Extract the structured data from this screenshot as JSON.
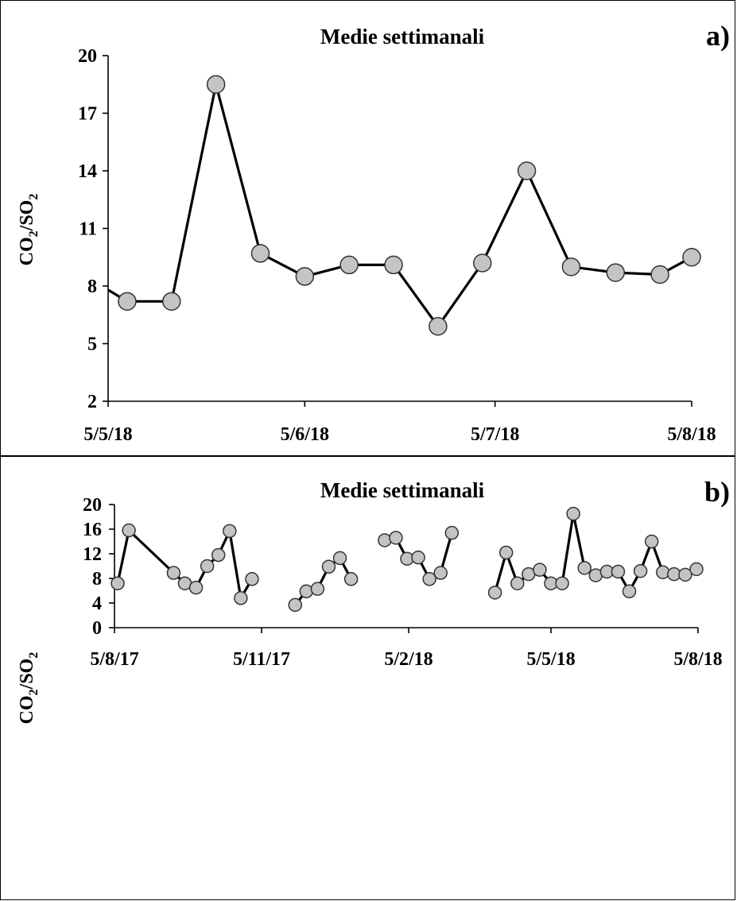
{
  "chart_data": [
    {
      "type": "line",
      "title": "Medie settimanali",
      "panel_label": "a)",
      "ylabel": "CO2/SO2",
      "ylabel_parts": [
        "CO",
        "2",
        "/SO",
        "2"
      ],
      "ylim": [
        2,
        20
      ],
      "yticks": [
        "2",
        "5",
        "8",
        "11",
        "14",
        "17",
        "20"
      ],
      "xlim": [
        "2018-05-05",
        "2018-08-05"
      ],
      "xticks": [
        {
          "label": "5/5/18",
          "date": "2018-05-05"
        },
        {
          "label": "5/6/18",
          "date": "2018-06-05"
        },
        {
          "label": "5/7/18",
          "date": "2018-07-05"
        },
        {
          "label": "5/8/18",
          "date": "2018-08-05"
        }
      ],
      "series": [
        {
          "segments": [
            [
              {
                "x": "2018-05-03",
                "y": 8.2
              },
              {
                "x": "2018-05-08",
                "y": 7.2
              },
              {
                "x": "2018-05-15",
                "y": 7.2
              },
              {
                "x": "2018-05-22",
                "y": 18.5
              },
              {
                "x": "2018-05-29",
                "y": 9.7
              },
              {
                "x": "2018-06-05",
                "y": 8.5
              },
              {
                "x": "2018-06-12",
                "y": 9.1
              },
              {
                "x": "2018-06-19",
                "y": 9.1
              },
              {
                "x": "2018-06-26",
                "y": 5.9
              },
              {
                "x": "2018-07-03",
                "y": 9.2
              },
              {
                "x": "2018-07-10",
                "y": 14.0
              },
              {
                "x": "2018-07-17",
                "y": 9.0
              },
              {
                "x": "2018-07-24",
                "y": 8.7
              },
              {
                "x": "2018-07-31",
                "y": 8.6
              },
              {
                "x": "2018-08-05",
                "y": 9.5
              }
            ]
          ]
        }
      ]
    },
    {
      "type": "line",
      "title": "Medie settimanali",
      "panel_label": "b)",
      "ylabel": "CO2/SO2",
      "ylabel_parts": [
        "CO",
        "2",
        "/SO",
        "2"
      ],
      "ylim": [
        0,
        20
      ],
      "yticks": [
        "0",
        "4",
        "8",
        "12",
        "16",
        "20"
      ],
      "xlim": [
        "2017-08-05",
        "2018-08-05"
      ],
      "xticks": [
        {
          "label": "5/8/17",
          "date": "2017-08-05"
        },
        {
          "label": "5/11/17",
          "date": "2017-11-05"
        },
        {
          "label": "5/2/18",
          "date": "2018-02-05"
        },
        {
          "label": "5/5/18",
          "date": "2018-05-05"
        },
        {
          "label": "5/8/18",
          "date": "2018-08-05"
        }
      ],
      "series": [
        {
          "segments": [
            [
              {
                "x": "2017-08-04",
                "y": 6.6
              },
              {
                "x": "2017-08-07",
                "y": 7.2
              },
              {
                "x": "2017-08-14",
                "y": 15.8
              },
              {
                "x": "2017-09-11",
                "y": 8.9
              },
              {
                "x": "2017-09-18",
                "y": 7.2
              },
              {
                "x": "2017-09-25",
                "y": 6.5
              },
              {
                "x": "2017-10-02",
                "y": 10.0
              },
              {
                "x": "2017-10-09",
                "y": 11.8
              },
              {
                "x": "2017-10-16",
                "y": 15.7
              },
              {
                "x": "2017-10-23",
                "y": 4.8
              },
              {
                "x": "2017-10-30",
                "y": 7.9
              }
            ],
            [
              {
                "x": "2017-11-26",
                "y": 3.7
              },
              {
                "x": "2017-12-03",
                "y": 5.9
              },
              {
                "x": "2017-12-10",
                "y": 6.3
              },
              {
                "x": "2017-12-17",
                "y": 9.9
              },
              {
                "x": "2017-12-24",
                "y": 11.3
              },
              {
                "x": "2017-12-31",
                "y": 7.9
              }
            ],
            [
              {
                "x": "2018-01-21",
                "y": 14.2
              },
              {
                "x": "2018-01-28",
                "y": 14.6
              },
              {
                "x": "2018-02-04",
                "y": 11.2
              },
              {
                "x": "2018-02-11",
                "y": 11.4
              },
              {
                "x": "2018-02-18",
                "y": 7.9
              },
              {
                "x": "2018-02-25",
                "y": 8.9
              },
              {
                "x": "2018-03-04",
                "y": 15.4
              }
            ],
            [
              {
                "x": "2018-03-31",
                "y": 5.7
              },
              {
                "x": "2018-04-07",
                "y": 12.2
              },
              {
                "x": "2018-04-14",
                "y": 7.2
              },
              {
                "x": "2018-04-21",
                "y": 8.7
              },
              {
                "x": "2018-04-28",
                "y": 9.4
              },
              {
                "x": "2018-05-05",
                "y": 7.2
              },
              {
                "x": "2018-05-12",
                "y": 7.2
              },
              {
                "x": "2018-05-19",
                "y": 18.5
              },
              {
                "x": "2018-05-26",
                "y": 9.7
              },
              {
                "x": "2018-06-02",
                "y": 8.5
              },
              {
                "x": "2018-06-09",
                "y": 9.1
              },
              {
                "x": "2018-06-16",
                "y": 9.1
              },
              {
                "x": "2018-06-23",
                "y": 5.9
              },
              {
                "x": "2018-06-30",
                "y": 9.2
              },
              {
                "x": "2018-07-07",
                "y": 14.0
              },
              {
                "x": "2018-07-14",
                "y": 9.0
              },
              {
                "x": "2018-07-21",
                "y": 8.7
              },
              {
                "x": "2018-07-28",
                "y": 8.6
              },
              {
                "x": "2018-08-04",
                "y": 9.5
              }
            ]
          ]
        }
      ]
    }
  ]
}
